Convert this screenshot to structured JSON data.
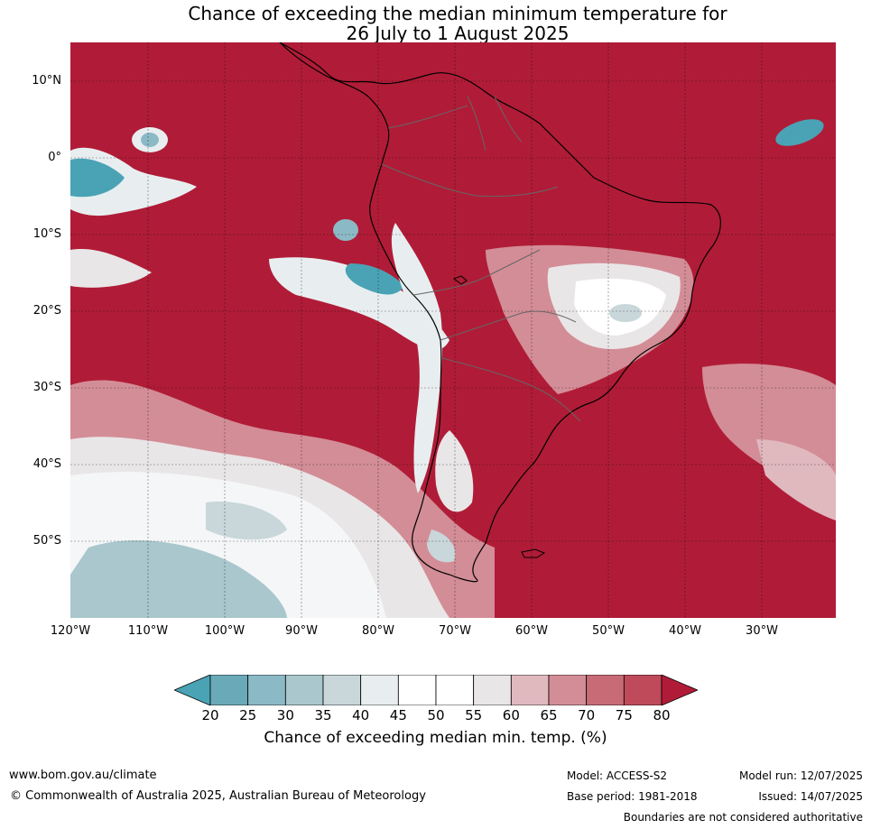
{
  "title_line1": "Chance of exceeding the median minimum temperature for",
  "title_line2": "26 July to 1 August 2025",
  "lat_labels": [
    "10°N",
    "0°",
    "10°S",
    "20°S",
    "30°S",
    "40°S",
    "50°S"
  ],
  "lon_labels": [
    "120°W",
    "110°W",
    "100°W",
    "90°W",
    "80°W",
    "70°W",
    "60°W",
    "50°W",
    "40°W",
    "30°W"
  ],
  "colorbar": {
    "ticks": [
      "20",
      "25",
      "30",
      "35",
      "40",
      "45",
      "50",
      "55",
      "60",
      "65",
      "70",
      "75",
      "80"
    ],
    "colors": [
      "#4aa3b5",
      "#6aaab8",
      "#8bb9c6",
      "#a9c7cc",
      "#c9d7da",
      "#e8eef0",
      "#ffffff",
      "#ffffff",
      "#e9e6e7",
      "#e0b9bf",
      "#d38d97",
      "#c86b77",
      "#bf4a59",
      "#b01c37"
    ],
    "label": "Chance of exceeding median min. temp. (%)"
  },
  "footer": {
    "website": "www.bom.gov.au/climate",
    "copyright": "© Commonwealth of Australia 2025, Australian Bureau of Meteorology",
    "model": "Model: ACCESS-S2",
    "base_period": "Base period: 1981-2018",
    "model_run": "Model run: 12/07/2025",
    "issued": "Issued: 14/07/2025",
    "boundaries": "Boundaries are not considered authoritative"
  }
}
